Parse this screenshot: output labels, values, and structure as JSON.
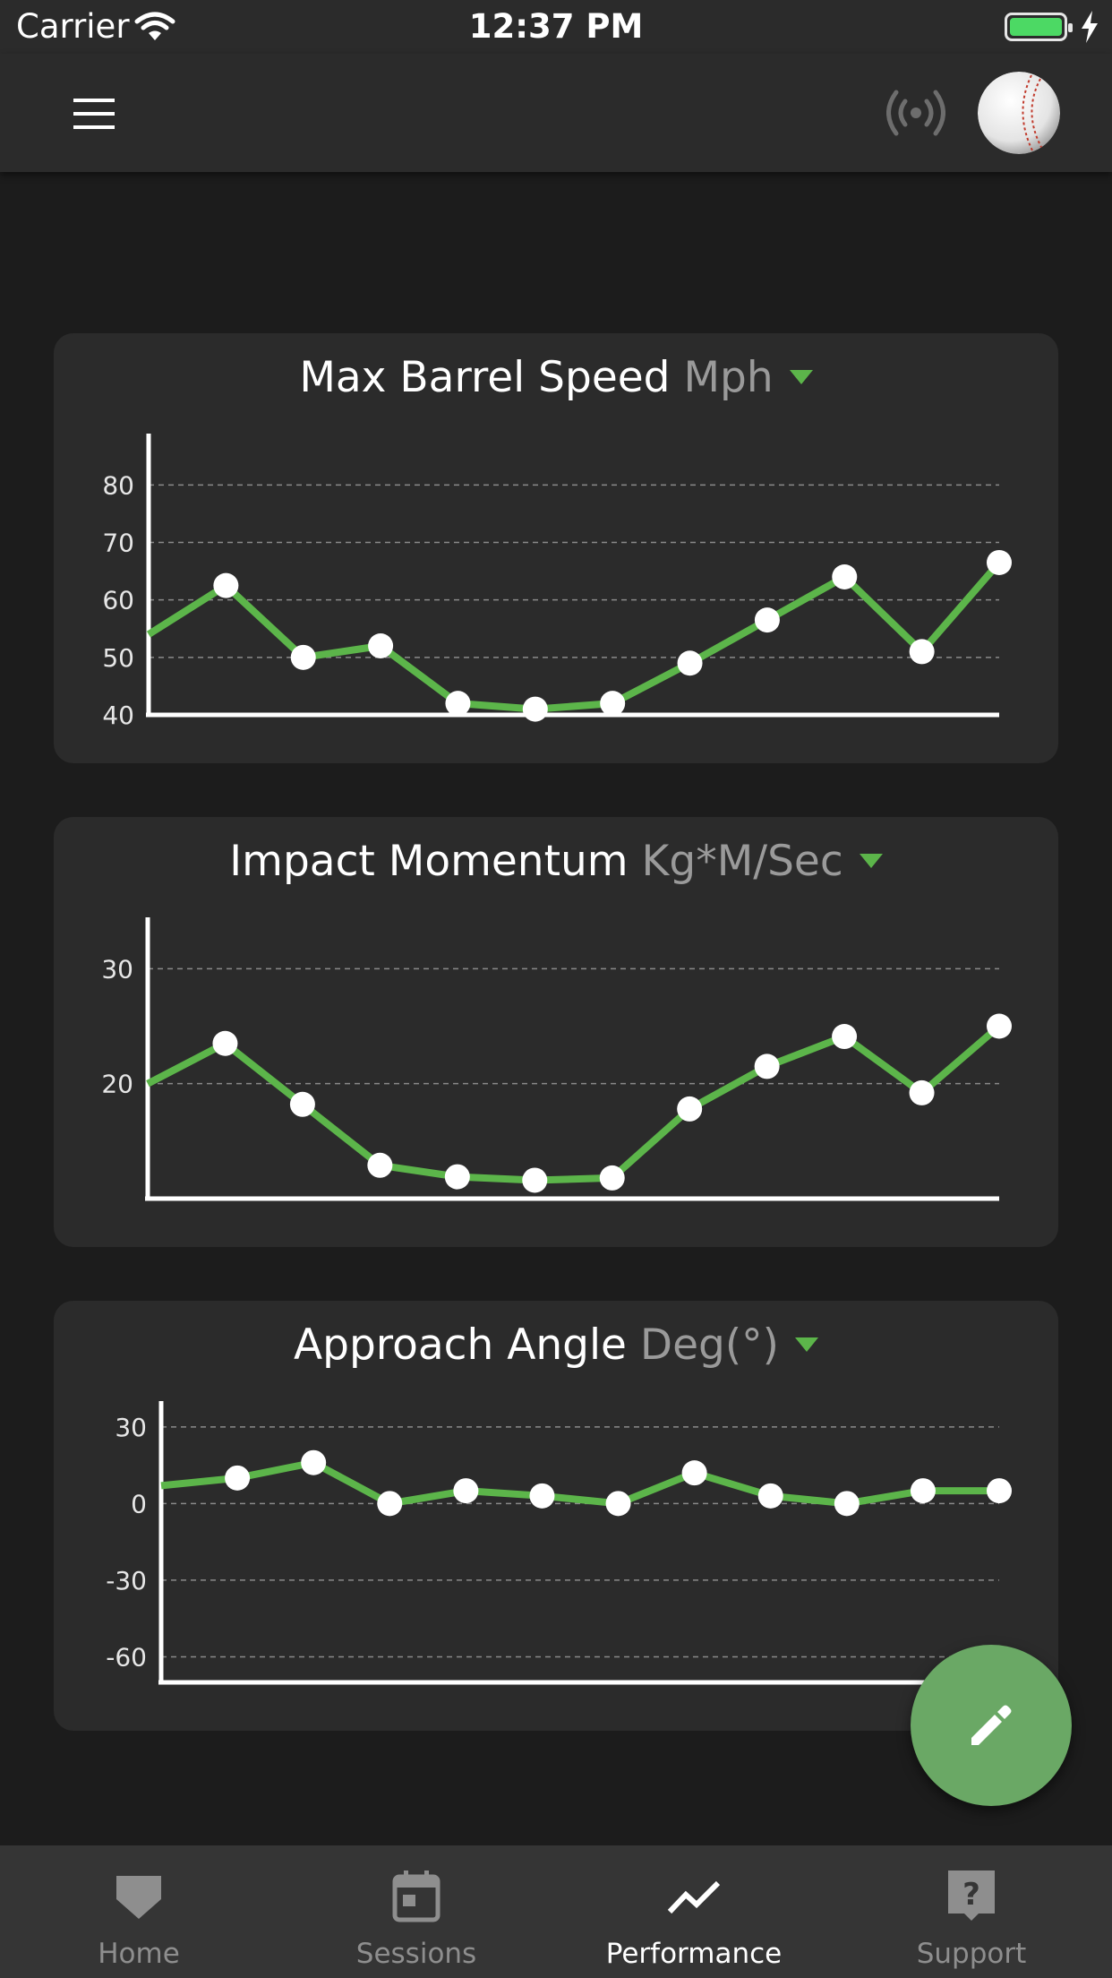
{
  "status_bar": {
    "carrier": "Carrier",
    "time": "12:37 PM"
  },
  "app_bar": {
    "menu_icon": "menu-icon",
    "signal_icon": "broadcast-signal-icon",
    "avatar_icon": "baseball-avatar"
  },
  "charts": [
    {
      "title": "Max Barrel Speed",
      "unit": "Mph",
      "chart_data": {
        "type": "line",
        "title": "Max Barrel Speed Mph",
        "y_ticks": [
          40,
          50,
          60,
          70,
          80
        ],
        "ylim": [
          40,
          88
        ],
        "grid": true,
        "legend": "none",
        "series": [
          {
            "values": [
              54,
              62.5,
              50,
              52,
              42,
              41,
              42,
              49,
              56.5,
              64,
              51,
              66.5
            ]
          }
        ]
      }
    },
    {
      "title": "Impact Momentum",
      "unit": "Kg*M/Sec",
      "chart_data": {
        "type": "line",
        "title": "Impact Momentum Kg*M/Sec",
        "y_ticks": [
          20,
          30
        ],
        "ylim": [
          10,
          34
        ],
        "grid": true,
        "legend": "none",
        "series": [
          {
            "values": [
              20,
              23.5,
              18.2,
              12.9,
              11.9,
              11.6,
              11.8,
              17.8,
              21.5,
              24.1,
              19.2,
              25
            ]
          }
        ]
      }
    },
    {
      "title": "Approach Angle",
      "unit": "Deg(°)",
      "chart_data": {
        "type": "line",
        "title": "Approach Angle Deg(°)",
        "y_ticks": [
          30,
          0,
          -30,
          -60
        ],
        "ylim": [
          -70,
          38
        ],
        "grid": true,
        "legend": "none",
        "series": [
          {
            "values": [
              7,
              10,
              16,
              0,
              5,
              3,
              0,
              12,
              3,
              0,
              5,
              5
            ]
          }
        ]
      }
    }
  ],
  "fab": {
    "icon": "pencil-icon"
  },
  "bottom_nav": {
    "items": [
      {
        "label": "Home",
        "icon": "home-plate-icon",
        "active": false
      },
      {
        "label": "Sessions",
        "icon": "calendar-icon",
        "active": false
      },
      {
        "label": "Performance",
        "icon": "trend-line-icon",
        "active": true
      },
      {
        "label": "Support",
        "icon": "help-icon",
        "active": false
      }
    ]
  }
}
